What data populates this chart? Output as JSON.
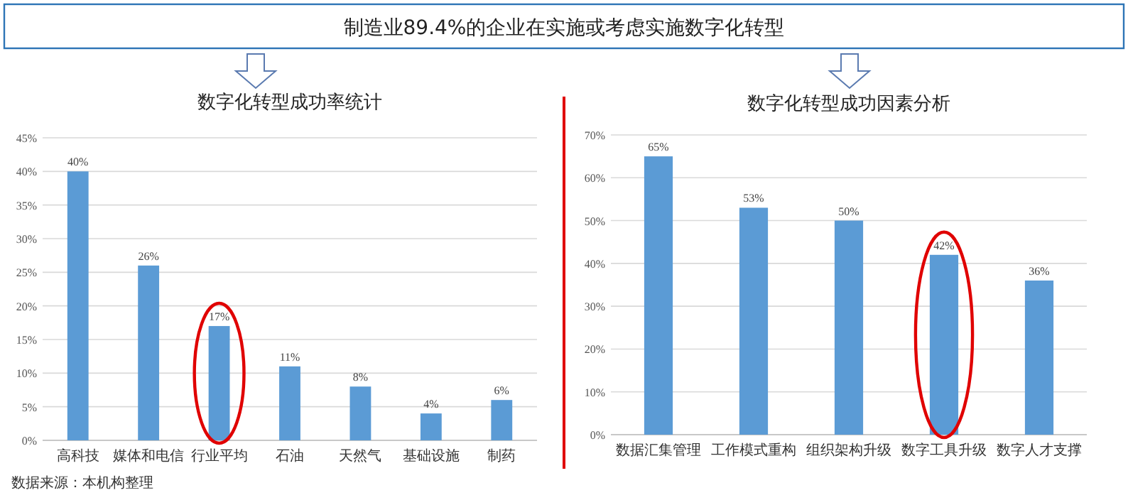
{
  "chart_data": [
    {
      "type": "other",
      "title": "制造业89.4%的企业在实施或考虑实施数字化转型"
    },
    {
      "type": "bar",
      "title": "数字化转型成功率统计",
      "categories": [
        "高科技",
        "媒体和电信",
        "行业平均",
        "石油",
        "天然气",
        "基础设施",
        "制药"
      ],
      "values": [
        40,
        26,
        17,
        11,
        8,
        4,
        6
      ],
      "value_labels": [
        "40%",
        "26%",
        "17%",
        "11%",
        "8%",
        "4%",
        "6%"
      ],
      "color": "#5b9bd5",
      "ylim": [
        0,
        45
      ],
      "yticks": [
        {
          "value": 0,
          "label": "0%"
        },
        {
          "value": 5,
          "label": "5%"
        },
        {
          "value": 10,
          "label": "10%"
        },
        {
          "value": 15,
          "label": "15%"
        },
        {
          "value": 20,
          "label": "20%"
        },
        {
          "value": 25,
          "label": "25%"
        },
        {
          "value": 30,
          "label": "30%"
        },
        {
          "value": 35,
          "label": "35%"
        },
        {
          "value": 40,
          "label": "40%"
        },
        {
          "value": 45,
          "label": "45%"
        }
      ],
      "grid": "y",
      "annotations": [
        "数据来源：本机构整理"
      ]
    },
    {
      "type": "bar",
      "title": "数字化转型成功因素分析",
      "categories": [
        "数据汇集管理",
        "工作模式重构",
        "组织架构升级",
        "数字工具升级",
        "数字人才支撑"
      ],
      "values": [
        65,
        53,
        50,
        42,
        36
      ],
      "value_labels": [
        "65%",
        "53%",
        "50%",
        "42%",
        "36%"
      ],
      "color": "#5b9bd5",
      "ylim": [
        0,
        70
      ],
      "yticks": [
        {
          "value": 0,
          "label": "0%"
        },
        {
          "value": 10,
          "label": "10%"
        },
        {
          "value": 20,
          "label": "20%"
        },
        {
          "value": 30,
          "label": "30%"
        },
        {
          "value": 40,
          "label": "40%"
        },
        {
          "value": 50,
          "label": "50%"
        },
        {
          "value": 60,
          "label": "60%"
        },
        {
          "value": 70,
          "label": "70%"
        }
      ],
      "grid": "y"
    }
  ]
}
